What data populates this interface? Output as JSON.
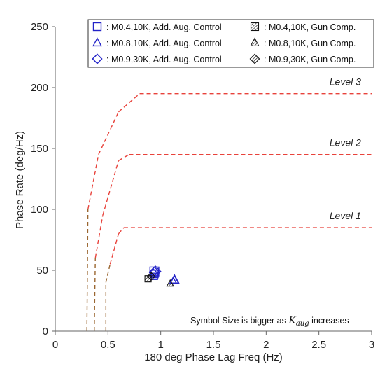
{
  "chart_data": {
    "type": "line",
    "title": "",
    "xlabel": "180 deg Phase Lag Freq (Hz)",
    "ylabel": "Phase Rate (deg/Hz)",
    "xlim": [
      0,
      3
    ],
    "ylim": [
      0,
      250
    ],
    "xticks": [
      0,
      0.5,
      1,
      1.5,
      2,
      2.5,
      3
    ],
    "xtick_labels": [
      "0",
      "0.5",
      "1",
      "1.5",
      "2",
      "2.5",
      "3"
    ],
    "yticks": [
      0,
      50,
      100,
      150,
      200,
      250
    ],
    "ytick_labels": [
      "0",
      "50",
      "100",
      "150",
      "200",
      "250"
    ],
    "grid": false,
    "legend_position": "top-right",
    "boundaries": [
      {
        "name": "Level 3",
        "label_x": 2.75,
        "label_y": 202,
        "upper_color": "#e8423b",
        "lower_color": "#9a6630",
        "x": [
          0.3,
          0.31,
          0.41,
          0.6,
          0.8,
          3.0
        ],
        "y": [
          0,
          100,
          145,
          180,
          195,
          195
        ]
      },
      {
        "name": "Level 2",
        "label_x": 2.75,
        "label_y": 152,
        "upper_color": "#e8423b",
        "lower_color": "#9a6630",
        "x": [
          0.37,
          0.38,
          0.45,
          0.6,
          0.7,
          3.0
        ],
        "y": [
          0,
          60,
          95,
          140,
          145,
          145
        ]
      },
      {
        "name": "Level 1",
        "label_x": 2.75,
        "label_y": 92,
        "upper_color": "#e8423b",
        "lower_color": "#9a6630",
        "x": [
          0.48,
          0.48,
          0.52,
          0.6,
          0.65,
          3.0
        ],
        "y": [
          0,
          40,
          55,
          80,
          85,
          85
        ]
      }
    ],
    "series": [
      {
        "name": ": M0.4,10K, Add. Aug. Control",
        "marker": "square",
        "style": "open",
        "color": "#2323c8",
        "points": [
          {
            "x": 0.94,
            "y": 45,
            "s": 1
          },
          {
            "x": 0.94,
            "y": 47,
            "s": 1.2
          },
          {
            "x": 0.94,
            "y": 49,
            "s": 1.4
          }
        ]
      },
      {
        "name": ": M0.8,10K, Add. Aug. Control",
        "marker": "triangle",
        "style": "open",
        "color": "#2323c8",
        "points": [
          {
            "x": 1.12,
            "y": 41,
            "s": 1
          },
          {
            "x": 1.13,
            "y": 42,
            "s": 1.2
          },
          {
            "x": 1.13,
            "y": 42,
            "s": 1.4
          }
        ]
      },
      {
        "name": ": M0.9,30K, Add. Aug. Control",
        "marker": "diamond",
        "style": "open",
        "color": "#2323c8",
        "points": [
          {
            "x": 0.93,
            "y": 48,
            "s": 1
          },
          {
            "x": 0.94,
            "y": 49,
            "s": 1.2
          },
          {
            "x": 0.95,
            "y": 49,
            "s": 1.4
          }
        ]
      },
      {
        "name": ": M0.4,10K, Gun Comp.",
        "marker": "square",
        "style": "hatched",
        "color": "#111111",
        "points": [
          {
            "x": 0.88,
            "y": 43,
            "s": 1
          }
        ]
      },
      {
        "name": ": M0.8,10K, Gun Comp.",
        "marker": "triangle",
        "style": "hatched",
        "color": "#111111",
        "points": [
          {
            "x": 1.09,
            "y": 39,
            "s": 1
          }
        ]
      },
      {
        "name": ": M0.9,30K, Gun Comp.",
        "marker": "diamond",
        "style": "hatched",
        "color": "#111111",
        "points": [
          {
            "x": 0.91,
            "y": 45,
            "s": 1
          }
        ]
      }
    ],
    "annotation": {
      "prefix": "Symbol Size is bigger as ",
      "symbol": "K",
      "subscript": "aug",
      "suffix": " increases"
    }
  }
}
